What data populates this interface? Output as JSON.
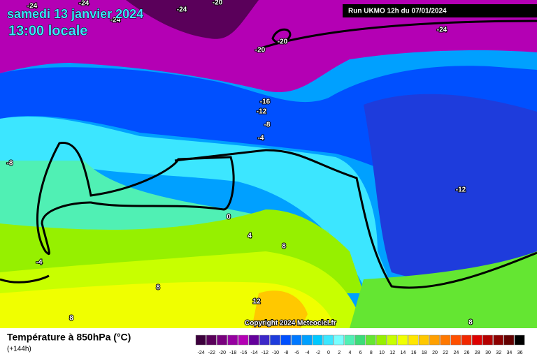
{
  "header": {
    "date": "samedi 13 janvier 2024",
    "time": "13:00 locale",
    "run": "Run UKMO 12h du 07/01/2024"
  },
  "map": {
    "contour_labels": [
      -24,
      -24,
      -24,
      -24,
      -24,
      -20,
      -20,
      -20,
      -16,
      -12,
      -12,
      -8,
      -8,
      -4,
      -4,
      0,
      4,
      8,
      8,
      8,
      8,
      12
    ],
    "copyright": "Copyright 2024 Meteociel.fr"
  },
  "footer": {
    "title": "Température à 850hPa (°C)",
    "lead": "(+144h)"
  },
  "colorbar": {
    "ticks": [
      -24,
      -22,
      -20,
      -18,
      -16,
      -14,
      -12,
      -10,
      -8,
      -6,
      -4,
      -2,
      0,
      2,
      4,
      6,
      8,
      10,
      12,
      14,
      16,
      18,
      20,
      22,
      24,
      26,
      28,
      30,
      32,
      34,
      36
    ],
    "colors": [
      "#3c003c",
      "#5a005a",
      "#78007d",
      "#9600a0",
      "#b400b4",
      "#64009b",
      "#3c28c8",
      "#1e3cdc",
      "#0050ff",
      "#0078ff",
      "#00a0ff",
      "#00c8ff",
      "#3ce6ff",
      "#78ffff",
      "#50f0b4",
      "#3cdc78",
      "#64e632",
      "#96f000",
      "#c8ff00",
      "#f0ff00",
      "#ffe600",
      "#ffc800",
      "#ffa000",
      "#ff7800",
      "#ff5000",
      "#f02800",
      "#dc0000",
      "#b40000",
      "#8c0000",
      "#640000",
      "#000000"
    ]
  }
}
